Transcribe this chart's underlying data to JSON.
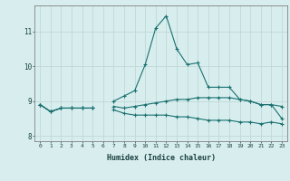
{
  "xlabel": "Humidex (Indice chaleur)",
  "x_values": [
    0,
    1,
    2,
    3,
    4,
    5,
    6,
    7,
    8,
    9,
    10,
    11,
    12,
    13,
    14,
    15,
    16,
    17,
    18,
    19,
    20,
    21,
    22,
    23
  ],
  "line1": [
    8.9,
    8.7,
    8.8,
    8.8,
    8.8,
    8.8,
    null,
    9.0,
    9.15,
    9.3,
    10.05,
    11.1,
    11.45,
    10.5,
    10.05,
    10.1,
    9.4,
    9.4,
    9.4,
    9.05,
    9.0,
    8.9,
    8.9,
    8.85
  ],
  "line2": [
    8.9,
    8.7,
    8.8,
    8.8,
    8.8,
    8.8,
    null,
    8.85,
    8.8,
    8.85,
    8.9,
    8.95,
    9.0,
    9.05,
    9.05,
    9.1,
    9.1,
    9.1,
    9.1,
    9.05,
    9.0,
    8.9,
    8.9,
    8.5
  ],
  "line3": [
    8.9,
    8.7,
    8.8,
    8.8,
    8.8,
    8.8,
    null,
    8.75,
    8.65,
    8.6,
    8.6,
    8.6,
    8.6,
    8.55,
    8.55,
    8.5,
    8.45,
    8.45,
    8.45,
    8.4,
    8.4,
    8.35,
    8.4,
    8.35
  ],
  "bg_color": "#d8eeee",
  "grid_color": "#c0d8d8",
  "line_color": "#1a7070",
  "ylim": [
    7.85,
    11.75
  ],
  "yticks": [
    8,
    9,
    10,
    11
  ],
  "xlim": [
    -0.5,
    23.5
  ]
}
